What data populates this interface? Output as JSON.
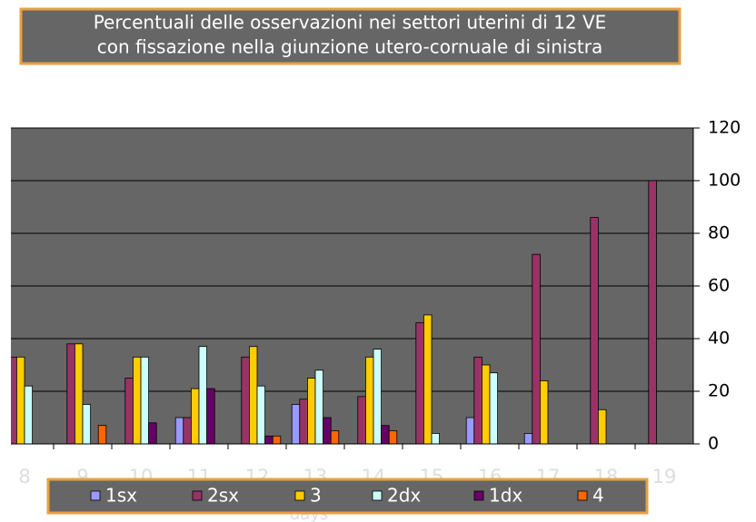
{
  "chart_data": {
    "type": "bar",
    "title": [
      "Percentuali delle osservazioni nei settori uterini di 12 VE",
      "con fissazione nella giunzione utero-cornuale di sinistra"
    ],
    "x_label": "days",
    "categories": [
      "8",
      "9",
      "10",
      "11",
      "12",
      "13",
      "14",
      "15",
      "16",
      "17",
      "18",
      "19"
    ],
    "series": [
      {
        "name": "1sx",
        "color": "#9999ff",
        "values": [
          0,
          0,
          0,
          10,
          0,
          15,
          0,
          0,
          10,
          4,
          0,
          0
        ]
      },
      {
        "name": "2sx",
        "color": "#993366",
        "values": [
          33,
          38,
          25,
          10,
          33,
          17,
          18,
          46,
          33,
          72,
          86,
          100
        ]
      },
      {
        "name": "3",
        "color": "#ffcc00",
        "values": [
          33,
          38,
          33,
          21,
          37,
          25,
          33,
          49,
          30,
          24,
          13,
          0
        ]
      },
      {
        "name": "2dx",
        "color": "#ccffff",
        "values": [
          22,
          15,
          33,
          37,
          22,
          28,
          36,
          4,
          27,
          0,
          0,
          0
        ]
      },
      {
        "name": "1dx",
        "color": "#660066",
        "values": [
          0,
          0,
          8,
          21,
          3,
          10,
          7,
          0,
          0,
          0,
          0,
          0
        ]
      },
      {
        "name": "4",
        "color": "#ff6600",
        "values": [
          0,
          7,
          0,
          0,
          3,
          5,
          5,
          0,
          0,
          0,
          0,
          0
        ]
      }
    ],
    "ylim": [
      0,
      120
    ],
    "yticks": [
      0,
      20,
      40,
      60,
      80,
      100,
      120
    ],
    "grid": true,
    "legend": "bottom"
  }
}
